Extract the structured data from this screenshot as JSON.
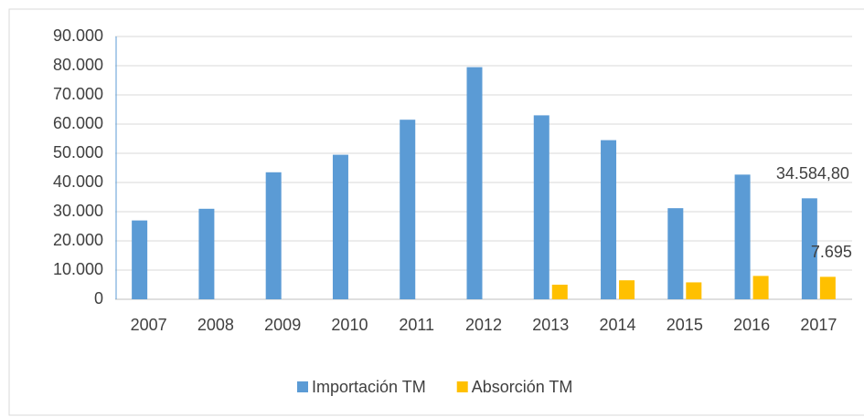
{
  "chart_data": {
    "type": "bar",
    "categories": [
      "2007",
      "2008",
      "2009",
      "2010",
      "2011",
      "2012",
      "2013",
      "2014",
      "2015",
      "2016",
      "2017"
    ],
    "series": [
      {
        "name": "Importación TM",
        "color": "#5b9bd5",
        "values": [
          27000,
          31000,
          43500,
          49500,
          61500,
          79500,
          63000,
          54500,
          31200,
          42700,
          34584.8
        ],
        "value_labels": [
          null,
          null,
          null,
          null,
          null,
          null,
          null,
          null,
          null,
          null,
          "34.584,80"
        ]
      },
      {
        "name": "Absorción TM",
        "color": "#ffc000",
        "values": [
          null,
          null,
          null,
          null,
          null,
          null,
          5000,
          6500,
          5800,
          8000,
          7695
        ],
        "value_labels": [
          null,
          null,
          null,
          null,
          null,
          null,
          null,
          null,
          null,
          null,
          "7.695"
        ]
      }
    ],
    "ylim": [
      0,
      90000
    ],
    "yticks": [
      0,
      {
        "value": 10000,
        "label": "10.000"
      },
      {
        "value": 20000,
        "label": "20.000"
      },
      {
        "value": 30000,
        "label": "30.000"
      },
      {
        "value": 40000,
        "label": "40.000"
      },
      {
        "value": 50000,
        "label": "50.000"
      },
      {
        "value": 60000,
        "label": "60.000"
      },
      {
        "value": 70000,
        "label": "70.000"
      },
      {
        "value": 80000,
        "label": "80.000"
      },
      {
        "value": 90000,
        "label": "90.000"
      }
    ],
    "grid": true,
    "legend": "bottom"
  }
}
